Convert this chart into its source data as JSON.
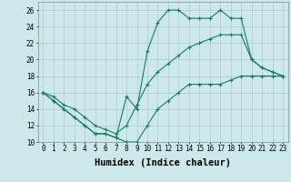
{
  "xlabel": "Humidex (Indice chaleur)",
  "background_color": "#cce8e8",
  "grid_color": "#b0c8c8",
  "line_color": "#1a7a6a",
  "x": [
    0,
    1,
    2,
    3,
    4,
    5,
    6,
    7,
    8,
    9,
    10,
    11,
    12,
    13,
    14,
    15,
    16,
    17,
    18,
    19,
    20,
    21,
    22,
    23
  ],
  "y_max": [
    16,
    15,
    14,
    13,
    12,
    11,
    11,
    10.5,
    15.5,
    14,
    21,
    24.5,
    26,
    26,
    25,
    25,
    25,
    26,
    25,
    25,
    20,
    19,
    18.5,
    18
  ],
  "y_mean": [
    16,
    15.5,
    14.5,
    14,
    13,
    12,
    11.5,
    11,
    12,
    14.5,
    17,
    18.5,
    19.5,
    20.5,
    21.5,
    22,
    22.5,
    23,
    23,
    23,
    20,
    19,
    18.5,
    18
  ],
  "y_min": [
    16,
    15,
    14,
    13,
    12,
    11,
    11,
    10.5,
    10,
    10,
    12,
    14,
    15,
    16,
    17,
    17,
    17,
    17,
    17.5,
    18,
    18,
    18,
    18,
    18
  ],
  "ylim": [
    10,
    27
  ],
  "xlim": [
    -0.5,
    23.5
  ],
  "yticks": [
    10,
    12,
    14,
    16,
    18,
    20,
    22,
    24,
    26
  ],
  "xticks": [
    0,
    1,
    2,
    3,
    4,
    5,
    6,
    7,
    8,
    9,
    10,
    11,
    12,
    13,
    14,
    15,
    16,
    17,
    18,
    19,
    20,
    21,
    22,
    23
  ],
  "tick_fontsize": 5.5,
  "label_fontsize": 7.5
}
